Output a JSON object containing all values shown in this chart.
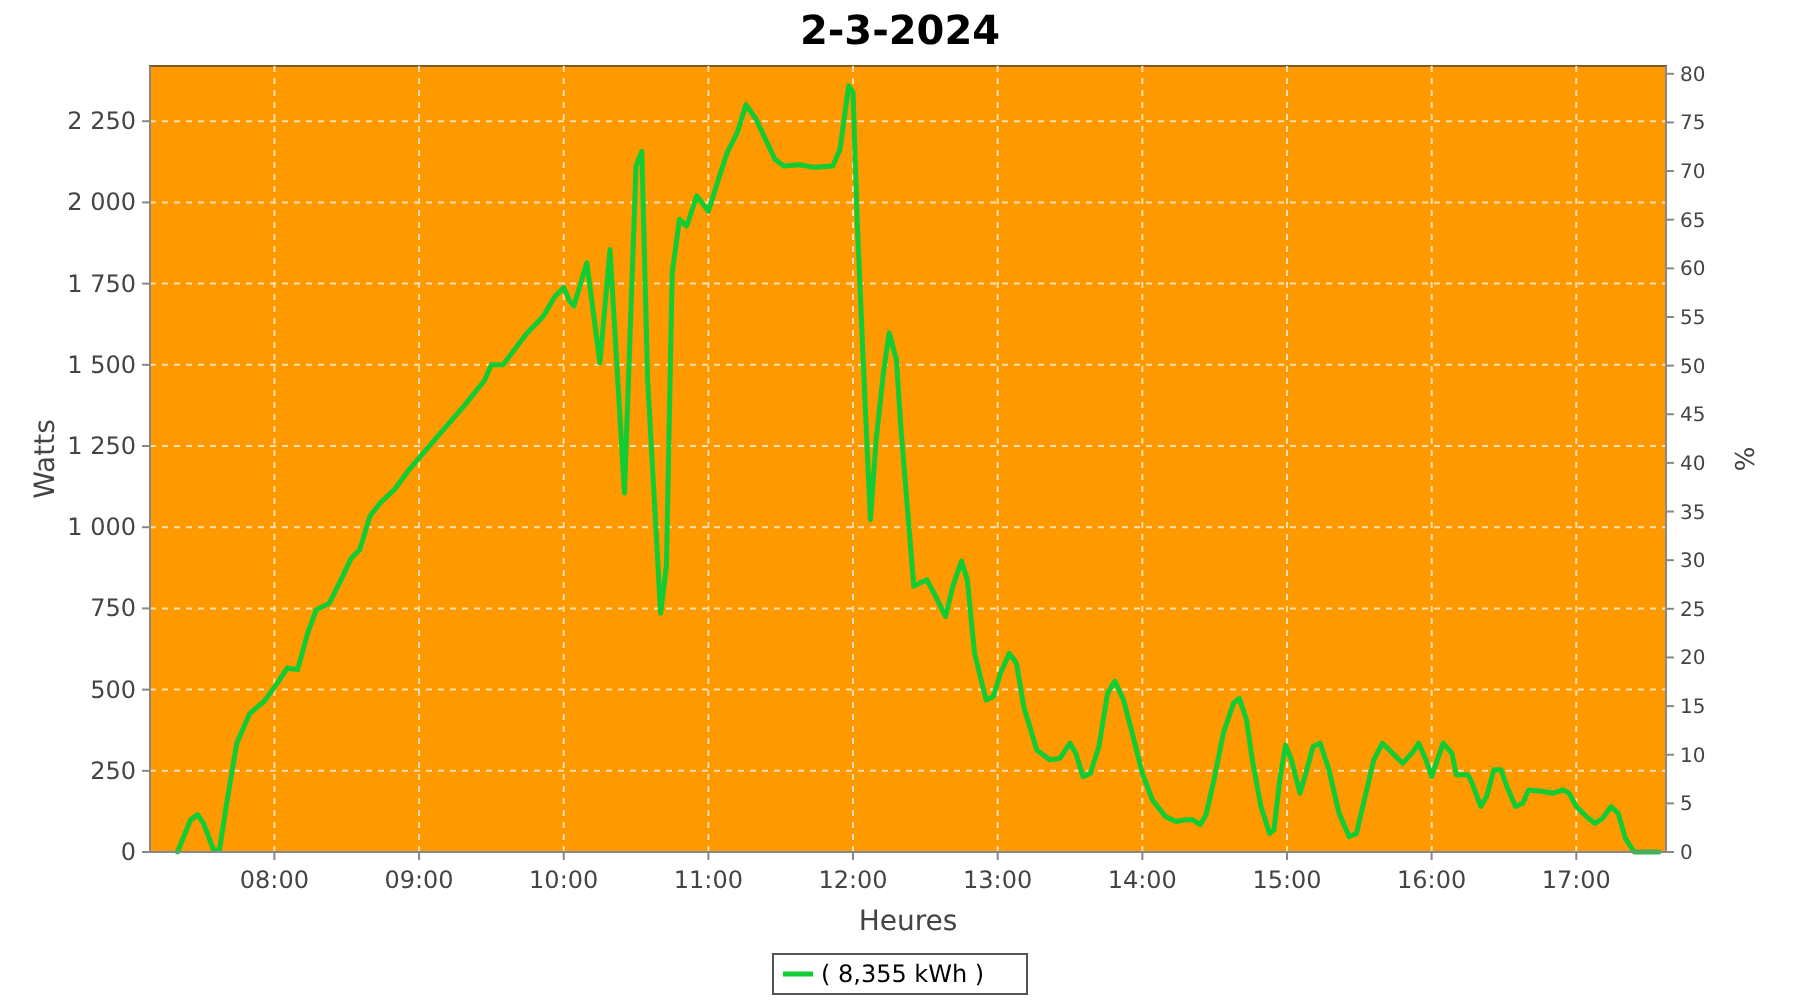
{
  "chart_data": {
    "type": "line",
    "title": "2-3-2024",
    "xlabel": "Heures",
    "ylabel": "Watts",
    "y2label": "%",
    "xlim": [
      7.14,
      17.62
    ],
    "xticks": [
      {
        "value": 8,
        "label": "08:00"
      },
      {
        "value": 9,
        "label": "09:00"
      },
      {
        "value": 10,
        "label": "10:00"
      },
      {
        "value": 11,
        "label": "11:00"
      },
      {
        "value": 12,
        "label": "12:00"
      },
      {
        "value": 13,
        "label": "13:00"
      },
      {
        "value": 14,
        "label": "14:00"
      },
      {
        "value": 15,
        "label": "15:00"
      },
      {
        "value": 16,
        "label": "16:00"
      },
      {
        "value": 17,
        "label": "17:00"
      }
    ],
    "ylim": [
      0,
      2420
    ],
    "yticks": [
      0,
      250,
      500,
      750,
      {
        "value": 1000,
        "label": "1 000"
      },
      {
        "value": 1250,
        "label": "1 250"
      },
      {
        "value": 1500,
        "label": "1 500"
      },
      {
        "value": 1750,
        "label": "1 750"
      },
      {
        "value": 2000,
        "label": "2 000"
      },
      {
        "value": 2250,
        "label": "2 250"
      }
    ],
    "y2lim": [
      0,
      80.8
    ],
    "y2ticks": [
      0,
      5,
      10,
      15,
      20,
      25,
      30,
      35,
      40,
      45,
      50,
      55,
      60,
      65,
      70,
      75,
      80
    ],
    "grid": true,
    "legend": "bottom",
    "line_style": "solid",
    "series": [
      {
        "name": "( 8,355 kWh )",
        "color": "#11cc33",
        "x": [
          7.33,
          7.42,
          7.47,
          7.51,
          7.58,
          7.62,
          7.67,
          7.74,
          7.83,
          7.93,
          8.02,
          8.09,
          8.16,
          8.23,
          8.29,
          8.38,
          8.46,
          8.53,
          8.59,
          8.66,
          8.73,
          8.83,
          8.92,
          9.03,
          9.17,
          9.31,
          9.45,
          9.5,
          9.58,
          9.65,
          9.74,
          9.86,
          9.94,
          10,
          10.04,
          10.07,
          10.16,
          10.25,
          10.32,
          10.42,
          10.5,
          10.54,
          10.58,
          10.67,
          10.71,
          10.75,
          10.8,
          10.85,
          10.92,
          11,
          11.07,
          11.13,
          11.2,
          11.26,
          11.33,
          11.46,
          11.52,
          11.63,
          11.73,
          11.86,
          11.91,
          11.97,
          12,
          12.03,
          12.07,
          12.12,
          12.16,
          12.21,
          12.25,
          12.3,
          12.33,
          12.42,
          12.46,
          12.51,
          12.56,
          12.64,
          12.69,
          12.75,
          12.79,
          12.84,
          12.92,
          12.97,
          13.02,
          13.08,
          13.13,
          13.18,
          13.27,
          13.36,
          13.43,
          13.5,
          13.54,
          13.59,
          13.64,
          13.7,
          13.76,
          13.81,
          13.87,
          13.93,
          14,
          14.07,
          14.16,
          14.23,
          14.3,
          14.35,
          14.4,
          14.44,
          14.49,
          14.56,
          14.63,
          14.67,
          14.72,
          14.76,
          14.82,
          14.88,
          14.91,
          14.95,
          14.99,
          15.03,
          15.09,
          15.13,
          15.18,
          15.23,
          15.29,
          15.36,
          15.43,
          15.48,
          15.54,
          15.6,
          15.66,
          15.73,
          15.8,
          15.87,
          15.91,
          15.96,
          16,
          16.04,
          16.08,
          16.14,
          16.17,
          16.25,
          16.28,
          16.34,
          16.38,
          16.43,
          16.48,
          16.52,
          16.58,
          16.63,
          16.67,
          16.77,
          16.84,
          16.91,
          16.95,
          17,
          17.07,
          17.13,
          17.18,
          17.24,
          17.29,
          17.34,
          17.4,
          17.48,
          17.57
        ],
        "values": [
          0,
          99,
          115,
          88,
          6,
          6,
          150,
          335,
          427,
          464,
          520,
          567,
          561,
          674,
          746,
          766,
          838,
          904,
          931,
          1034,
          1074,
          1116,
          1171,
          1229,
          1301,
          1373,
          1450,
          1500,
          1500,
          1541,
          1594,
          1650,
          1711,
          1738,
          1697,
          1681,
          1814,
          1506,
          1855,
          1105,
          2112,
          2157,
          1455,
          735,
          880,
          1783,
          1948,
          1927,
          2020,
          1973,
          2071,
          2153,
          2215,
          2301,
          2256,
          2133,
          2112,
          2116,
          2108,
          2112,
          2164,
          2359,
          2338,
          1929,
          1516,
          1023,
          1270,
          1475,
          1598,
          1516,
          1311,
          818,
          828,
          838,
          797,
          725,
          818,
          896,
          838,
          612,
          468,
          479,
          551,
          612,
          581,
          448,
          314,
          284,
          288,
          335,
          304,
          232,
          242,
          325,
          489,
          526,
          468,
          366,
          242,
          160,
          109,
          94,
          99,
          99,
          84,
          115,
          211,
          366,
          458,
          473,
          407,
          284,
          140,
          57,
          68,
          222,
          329,
          284,
          181,
          242,
          325,
          335,
          253,
          119,
          47,
          57,
          171,
          284,
          335,
          304,
          273,
          308,
          335,
          284,
          232,
          284,
          335,
          304,
          238,
          238,
          211,
          140,
          171,
          253,
          253,
          202,
          140,
          150,
          191,
          186,
          181,
          191,
          181,
          140,
          109,
          88,
          103,
          140,
          119,
          41,
          0,
          0,
          0
        ]
      }
    ]
  }
}
